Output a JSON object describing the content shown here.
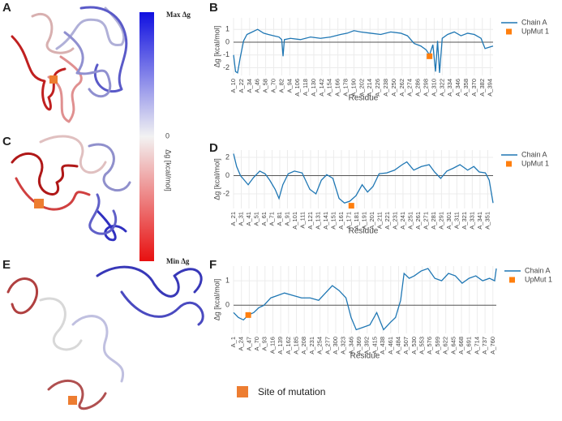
{
  "panel_labels": [
    "A",
    "B",
    "C",
    "D",
    "E",
    "F"
  ],
  "colorbar": {
    "max_label": "Max Δg",
    "min_label": "Min Δg",
    "zero_label": 0,
    "axis_label": "Δg [kcal/mol]"
  },
  "mutation_legend": {
    "label": "Site of mutation",
    "color": "#ed7d31"
  },
  "chart_data": [
    {
      "type": "line",
      "xlabel": "Residue",
      "ylabel": "Δg [kcal/mol]",
      "grid": true,
      "legend": "right",
      "xlim": [
        10,
        398
      ],
      "ylim": [
        -2.6,
        1.9
      ],
      "yticks": [
        -2,
        -1,
        0,
        1
      ],
      "xticks": [
        {
          "value": 10,
          "label": "A_10"
        },
        {
          "value": 22,
          "label": "A_22"
        },
        {
          "value": 34,
          "label": "A_34"
        },
        {
          "value": 46,
          "label": "A_46"
        },
        {
          "value": 58,
          "label": "A_58"
        },
        {
          "value": 70,
          "label": "A_70"
        },
        {
          "value": 82,
          "label": "A_82"
        },
        {
          "value": 94,
          "label": "A_94"
        },
        {
          "value": 106,
          "label": "A_106"
        },
        {
          "value": 118,
          "label": "A_118"
        },
        {
          "value": 130,
          "label": "A_130"
        },
        {
          "value": 142,
          "label": "A_142"
        },
        {
          "value": 154,
          "label": "A_154"
        },
        {
          "value": 166,
          "label": "A_166"
        },
        {
          "value": 178,
          "label": "A_178"
        },
        {
          "value": 190,
          "label": "A_190"
        },
        {
          "value": 202,
          "label": "A_202"
        },
        {
          "value": 214,
          "label": "A_214"
        },
        {
          "value": 226,
          "label": "A_226"
        },
        {
          "value": 238,
          "label": "A_238"
        },
        {
          "value": 250,
          "label": "A_250"
        },
        {
          "value": 262,
          "label": "A_262"
        },
        {
          "value": 274,
          "label": "A_274"
        },
        {
          "value": 286,
          "label": "A_286"
        },
        {
          "value": 298,
          "label": "A_298"
        },
        {
          "value": 310,
          "label": "A_310"
        },
        {
          "value": 322,
          "label": "A_322"
        },
        {
          "value": 334,
          "label": "A_334"
        },
        {
          "value": 346,
          "label": "A_346"
        },
        {
          "value": 358,
          "label": "A_358"
        },
        {
          "value": 370,
          "label": "A_370"
        },
        {
          "value": 382,
          "label": "A_382"
        },
        {
          "value": 394,
          "label": "A_394"
        }
      ],
      "series": [
        {
          "name": "Chain A",
          "color": "#1f77b4",
          "mode": "lines",
          "x": [
            10,
            13,
            16,
            20,
            25,
            30,
            38,
            46,
            55,
            62,
            70,
            78,
            82,
            84,
            86,
            95,
            110,
            125,
            140,
            155,
            170,
            180,
            190,
            200,
            215,
            230,
            245,
            260,
            270,
            280,
            290,
            298,
            303,
            308,
            312,
            315,
            318,
            322,
            330,
            340,
            350,
            360,
            370,
            380,
            386,
            392,
            398
          ],
          "values": [
            -1.0,
            -2.3,
            -2.4,
            -1.2,
            0.1,
            0.6,
            0.8,
            1.0,
            0.7,
            0.6,
            0.5,
            0.4,
            0.2,
            -1.1,
            0.2,
            0.3,
            0.2,
            0.4,
            0.3,
            0.4,
            0.6,
            0.7,
            0.9,
            0.8,
            0.7,
            0.6,
            0.8,
            0.7,
            0.5,
            -0.1,
            -0.3,
            -0.6,
            -1.0,
            -0.2,
            -2.3,
            0.1,
            -2.4,
            0.3,
            0.6,
            0.8,
            0.5,
            0.7,
            0.6,
            0.3,
            -0.5,
            -0.4,
            -0.3
          ]
        },
        {
          "name": "UpMut 1",
          "color": "#ff7f0e",
          "mode": "markers",
          "x": [
            303
          ],
          "values": [
            -1.1
          ]
        }
      ]
    },
    {
      "type": "line",
      "xlabel": "Residue",
      "ylabel": "Δg [kcal/mol]",
      "grid": true,
      "legend": "right",
      "xlim": [
        21,
        358
      ],
      "ylim": [
        -3.6,
        2.8
      ],
      "yticks": [
        -2,
        0,
        2
      ],
      "xticks": [
        {
          "value": 21,
          "label": "A_21"
        },
        {
          "value": 31,
          "label": "A_31"
        },
        {
          "value": 41,
          "label": "A_41"
        },
        {
          "value": 51,
          "label": "A_51"
        },
        {
          "value": 61,
          "label": "A_61"
        },
        {
          "value": 71,
          "label": "A_71"
        },
        {
          "value": 81,
          "label": "A_81"
        },
        {
          "value": 91,
          "label": "A_91"
        },
        {
          "value": 101,
          "label": "A_101"
        },
        {
          "value": 111,
          "label": "A_111"
        },
        {
          "value": 121,
          "label": "A_121"
        },
        {
          "value": 131,
          "label": "A_131"
        },
        {
          "value": 141,
          "label": "A_141"
        },
        {
          "value": 151,
          "label": "A_151"
        },
        {
          "value": 161,
          "label": "A_161"
        },
        {
          "value": 171,
          "label": "A_171"
        },
        {
          "value": 181,
          "label": "A_181"
        },
        {
          "value": 191,
          "label": "A_191"
        },
        {
          "value": 201,
          "label": "A_201"
        },
        {
          "value": 211,
          "label": "A_211"
        },
        {
          "value": 221,
          "label": "A_221"
        },
        {
          "value": 231,
          "label": "A_231"
        },
        {
          "value": 241,
          "label": "A_241"
        },
        {
          "value": 251,
          "label": "A_251"
        },
        {
          "value": 261,
          "label": "A_261"
        },
        {
          "value": 271,
          "label": "A_271"
        },
        {
          "value": 281,
          "label": "A_281"
        },
        {
          "value": 291,
          "label": "A_291"
        },
        {
          "value": 301,
          "label": "A_301"
        },
        {
          "value": 311,
          "label": "A_311"
        },
        {
          "value": 321,
          "label": "A_321"
        },
        {
          "value": 331,
          "label": "A_331"
        },
        {
          "value": 341,
          "label": "A_341"
        },
        {
          "value": 351,
          "label": "A_351"
        }
      ],
      "series": [
        {
          "name": "Chain A",
          "color": "#1f77b4",
          "mode": "lines",
          "x": [
            21,
            25,
            30,
            35,
            40,
            47,
            55,
            62,
            68,
            75,
            80,
            85,
            92,
            100,
            110,
            120,
            128,
            135,
            142,
            150,
            158,
            165,
            172,
            180,
            188,
            195,
            202,
            210,
            220,
            230,
            240,
            246,
            255,
            265,
            275,
            282,
            290,
            298,
            306,
            315,
            325,
            333,
            340,
            348,
            353,
            358
          ],
          "values": [
            2.4,
            1.0,
            0.0,
            -0.5,
            -1.0,
            -0.2,
            0.5,
            0.2,
            -0.5,
            -1.5,
            -2.5,
            -1.0,
            0.2,
            0.5,
            0.3,
            -1.5,
            -2.0,
            -0.5,
            0.1,
            -0.3,
            -2.5,
            -3.0,
            -2.8,
            -2.2,
            -1.0,
            -1.8,
            -1.2,
            0.2,
            0.3,
            0.6,
            1.2,
            1.5,
            0.6,
            1.0,
            1.2,
            0.4,
            -0.3,
            0.5,
            0.8,
            1.2,
            0.6,
            1.0,
            0.4,
            0.3,
            -0.5,
            -3.0
          ]
        },
        {
          "name": "UpMut 1",
          "color": "#ff7f0e",
          "mode": "markers",
          "x": [
            174
          ],
          "values": [
            -3.3
          ]
        }
      ]
    },
    {
      "type": "line",
      "xlabel": "Residue",
      "ylabel": "Δg [kcal/mol]",
      "grid": true,
      "legend": "right",
      "xlim": [
        1,
        770
      ],
      "ylim": [
        -1.15,
        1.6
      ],
      "yticks": [
        0,
        1
      ],
      "xticks": [
        {
          "value": 1,
          "label": "A_1"
        },
        {
          "value": 24,
          "label": "A_24"
        },
        {
          "value": 47,
          "label": "A_47"
        },
        {
          "value": 70,
          "label": "A_70"
        },
        {
          "value": 93,
          "label": "A_93"
        },
        {
          "value": 116,
          "label": "A_116"
        },
        {
          "value": 139,
          "label": "A_139"
        },
        {
          "value": 162,
          "label": "A_162"
        },
        {
          "value": 185,
          "label": "A_185"
        },
        {
          "value": 208,
          "label": "A_208"
        },
        {
          "value": 231,
          "label": "A_231"
        },
        {
          "value": 254,
          "label": "A_254"
        },
        {
          "value": 277,
          "label": "A_277"
        },
        {
          "value": 300,
          "label": "A_300"
        },
        {
          "value": 323,
          "label": "A_323"
        },
        {
          "value": 346,
          "label": "A_346"
        },
        {
          "value": 369,
          "label": "A_369"
        },
        {
          "value": 392,
          "label": "A_392"
        },
        {
          "value": 415,
          "label": "A_415"
        },
        {
          "value": 438,
          "label": "A_438"
        },
        {
          "value": 461,
          "label": "A_461"
        },
        {
          "value": 484,
          "label": "A_484"
        },
        {
          "value": 507,
          "label": "A_507"
        },
        {
          "value": 530,
          "label": "A_530"
        },
        {
          "value": 553,
          "label": "A_553"
        },
        {
          "value": 576,
          "label": "A_576"
        },
        {
          "value": 599,
          "label": "A_599"
        },
        {
          "value": 622,
          "label": "A_622"
        },
        {
          "value": 645,
          "label": "A_645"
        },
        {
          "value": 668,
          "label": "A_668"
        },
        {
          "value": 691,
          "label": "A_691"
        },
        {
          "value": 714,
          "label": "A_714"
        },
        {
          "value": 737,
          "label": "A_737"
        },
        {
          "value": 760,
          "label": "A_760"
        }
      ],
      "series": [
        {
          "name": "Chain A",
          "color": "#1f77b4",
          "mode": "lines",
          "x": [
            1,
            15,
            30,
            44,
            60,
            75,
            90,
            110,
            130,
            150,
            175,
            200,
            225,
            250,
            270,
            290,
            310,
            330,
            345,
            360,
            380,
            400,
            420,
            440,
            460,
            475,
            490,
            500,
            515,
            530,
            550,
            570,
            590,
            610,
            630,
            650,
            670,
            690,
            710,
            730,
            750,
            765,
            770
          ],
          "values": [
            -0.3,
            -0.5,
            -0.6,
            -0.4,
            -0.3,
            -0.1,
            0.0,
            0.3,
            0.4,
            0.5,
            0.4,
            0.3,
            0.3,
            0.2,
            0.5,
            0.8,
            0.6,
            0.3,
            -0.5,
            -1.0,
            -0.9,
            -0.8,
            -0.3,
            -1.0,
            -0.7,
            -0.5,
            0.2,
            1.3,
            1.1,
            1.2,
            1.4,
            1.5,
            1.1,
            1.0,
            1.3,
            1.2,
            0.9,
            1.1,
            1.2,
            1.0,
            1.1,
            1.0,
            1.5
          ]
        },
        {
          "name": "UpMut 1",
          "color": "#ff7f0e",
          "mode": "markers",
          "x": [
            44
          ],
          "values": [
            -0.4
          ]
        }
      ]
    }
  ]
}
